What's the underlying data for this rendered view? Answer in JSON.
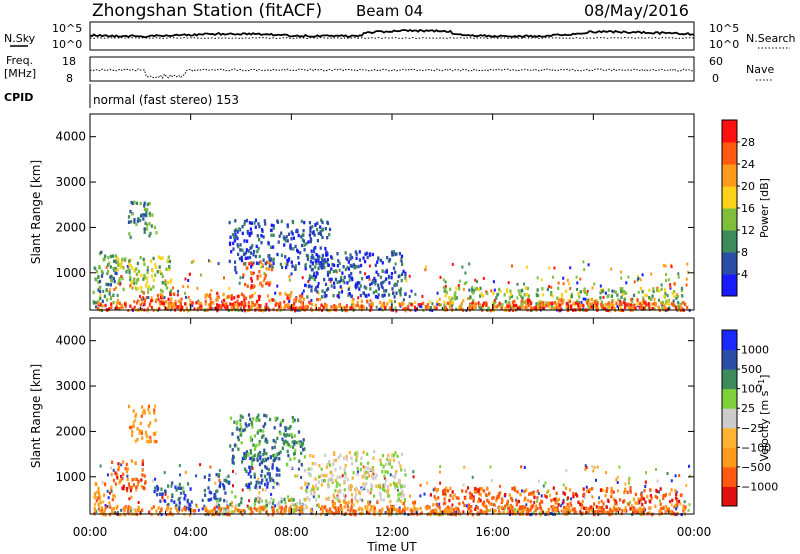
{
  "header": {
    "station": "Zhongshan Station (fitACF)",
    "beam": "Beam 04",
    "date": "08/May/2016"
  },
  "strips": {
    "nsky": {
      "label": "N.Sky",
      "tick_top": "10^5",
      "tick_bottom": "10^0"
    },
    "nsearch": {
      "label": "N.Search",
      "tick_top": "10^5",
      "tick_bottom": "10^0"
    },
    "freq": {
      "label_line1": "Freq.",
      "label_line2": "[MHz]",
      "tick_top": "18",
      "tick_bottom": "8"
    },
    "nave": {
      "label": "Nave",
      "tick_top": "60",
      "tick_bottom": "0"
    },
    "cpid": {
      "label": "CPID",
      "text": "normal (fast stereo) 153"
    }
  },
  "colors": {
    "power": [
      "#1a1aff",
      "#2b4fa8",
      "#3d8a5a",
      "#7fbf3a",
      "#ffd21a",
      "#ff9a1a",
      "#ff5a10",
      "#ff1010"
    ],
    "velocity": [
      "#e01010",
      "#ff5a10",
      "#ff9a1a",
      "#ffb330",
      "#cccccc",
      "#7fd13a",
      "#3d8a5a",
      "#2b4fa8",
      "#1a2aff"
    ]
  },
  "chart_data": [
    {
      "type": "heatmap",
      "name": "power",
      "ylabel": "Slant Range [km]",
      "xlabel": "",
      "colorbar_label": "Power [dB]",
      "colorbar_ticks": [
        "4",
        "8",
        "12",
        "16",
        "20",
        "24",
        "28"
      ],
      "x_ticks": [
        "00:00",
        "04:00",
        "08:00",
        "12:00",
        "16:00",
        "20:00",
        "00:00"
      ],
      "y_ticks": [
        "1000",
        "2000",
        "3000",
        "4000"
      ],
      "ylim": [
        180,
        4500
      ],
      "x_range_hours": [
        0,
        24
      ],
      "regions": [
        {
          "t": [
            1.0,
            3.2
          ],
          "r": [
            600,
            1400
          ],
          "level": 3
        },
        {
          "t": [
            1.5,
            2.6
          ],
          "r": [
            1800,
            2600
          ],
          "level": 2
        },
        {
          "t": [
            2.0,
            3.6
          ],
          "r": [
            300,
            600
          ],
          "level": 6
        },
        {
          "t": [
            4.5,
            8.5
          ],
          "r": [
            250,
            600
          ],
          "level": 6
        },
        {
          "t": [
            5.0,
            6.5
          ],
          "r": [
            250,
            450
          ],
          "level": 7
        },
        {
          "t": [
            6.0,
            7.2
          ],
          "r": [
            700,
            1300
          ],
          "level": 6
        },
        {
          "t": [
            5.5,
            9.5
          ],
          "r": [
            1100,
            2200
          ],
          "level": 1
        },
        {
          "t": [
            8.5,
            12.5
          ],
          "r": [
            500,
            1500
          ],
          "level": 1
        },
        {
          "t": [
            9.0,
            12.0
          ],
          "r": [
            250,
            450
          ],
          "level": 5
        },
        {
          "t": [
            14.0,
            23.5
          ],
          "r": [
            250,
            700
          ],
          "level": 3
        },
        {
          "t": [
            16.5,
            22.5
          ],
          "r": [
            250,
            450
          ],
          "level": 6
        },
        {
          "t": [
            0.1,
            1.0
          ],
          "r": [
            300,
            1500
          ],
          "level": 2
        }
      ]
    },
    {
      "type": "heatmap",
      "name": "velocity",
      "ylabel": "Slant Range [km]",
      "xlabel": "Time UT",
      "colorbar_label": "Velocity [m s^-1]",
      "colorbar_ticks": [
        "-1000",
        "-500",
        "-100",
        "-25",
        "25",
        "100",
        "500",
        "1000"
      ],
      "x_ticks": [
        "00:00",
        "04:00",
        "08:00",
        "12:00",
        "16:00",
        "20:00",
        "00:00"
      ],
      "y_ticks": [
        "1000",
        "2000",
        "3000",
        "4000"
      ],
      "ylim": [
        180,
        4500
      ],
      "x_range_hours": [
        0,
        24
      ],
      "regions": [
        {
          "t": [
            0.8,
            2.2
          ],
          "r": [
            700,
            1400
          ],
          "level": 1
        },
        {
          "t": [
            1.5,
            2.6
          ],
          "r": [
            1800,
            2600
          ],
          "level": 2
        },
        {
          "t": [
            2.5,
            4.0
          ],
          "r": [
            300,
            900
          ],
          "level": 7
        },
        {
          "t": [
            4.5,
            5.5
          ],
          "r": [
            500,
            1100
          ],
          "level": 7
        },
        {
          "t": [
            5.0,
            8.5
          ],
          "r": [
            250,
            600
          ],
          "level": 5
        },
        {
          "t": [
            6.0,
            7.5
          ],
          "r": [
            800,
            1500
          ],
          "level": 7
        },
        {
          "t": [
            5.5,
            8.5
          ],
          "r": [
            1300,
            2400
          ],
          "level": 6
        },
        {
          "t": [
            8.5,
            12.5
          ],
          "r": [
            500,
            1600
          ],
          "level": 4
        },
        {
          "t": [
            9.0,
            13.0
          ],
          "r": [
            250,
            500
          ],
          "level": 2
        },
        {
          "t": [
            13.5,
            23.5
          ],
          "r": [
            250,
            800
          ],
          "level": 1
        },
        {
          "t": [
            0.1,
            1.0
          ],
          "r": [
            300,
            900
          ],
          "level": 2
        }
      ]
    }
  ]
}
